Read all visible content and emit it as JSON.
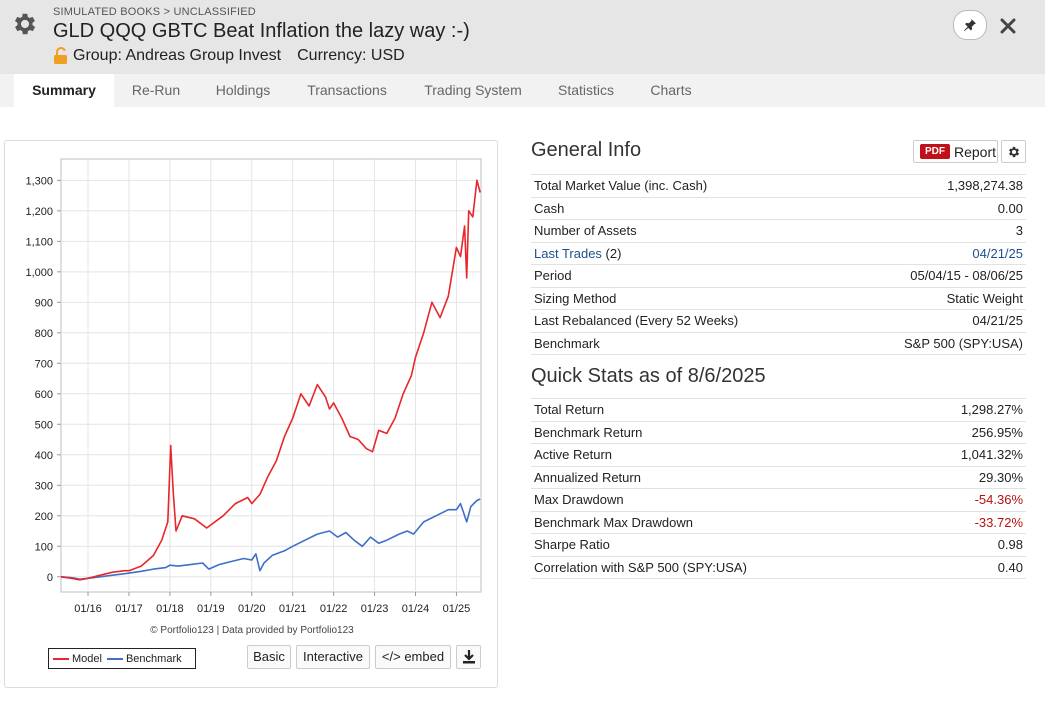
{
  "header": {
    "breadcrumb": "SIMULATED BOOKS > UNCLASSIFIED",
    "title": "GLD QQQ GBTC Beat Inflation the lazy way :-)",
    "group": "Group: Andreas Group Invest",
    "currency": "Currency: USD"
  },
  "tabs": [
    {
      "label": "Summary",
      "active": true
    },
    {
      "label": "Re-Run"
    },
    {
      "label": "Holdings"
    },
    {
      "label": "Transactions"
    },
    {
      "label": "Trading System"
    },
    {
      "label": "Statistics"
    },
    {
      "label": "Charts"
    }
  ],
  "chart": {
    "credit": "© Portfolio123 | Data provided by Portfolio123",
    "legend_model": "Model",
    "legend_benchmark": "Benchmark",
    "btn_basic": "Basic",
    "btn_interactive": "Interactive",
    "btn_embed": "</> embed"
  },
  "chart_data": {
    "type": "line",
    "x_tick_labels": [
      "01/16",
      "01/17",
      "01/18",
      "01/19",
      "01/20",
      "01/21",
      "01/22",
      "01/23",
      "01/24",
      "01/25"
    ],
    "y_tick_labels": [
      "0",
      "100",
      "200",
      "300",
      "400",
      "500",
      "600",
      "700",
      "800",
      "900",
      "1,000",
      "1,100",
      "1,200",
      "1,300"
    ],
    "ylim": [
      -50,
      1370
    ],
    "xlim": [
      2015.34,
      2025.6
    ],
    "grid": true,
    "legend_placement": "bottom-left",
    "colors": {
      "model": "#e8262b",
      "benchmark": "#3e6fc9"
    },
    "series": [
      {
        "name": "Model",
        "x": [
          2015.34,
          2015.6,
          2015.8,
          2016.0,
          2016.3,
          2016.6,
          2016.9,
          2017.0,
          2017.3,
          2017.6,
          2017.8,
          2017.95,
          2018.02,
          2018.08,
          2018.15,
          2018.3,
          2018.6,
          2018.9,
          2019.3,
          2019.6,
          2019.9,
          2020.0,
          2020.2,
          2020.4,
          2020.6,
          2020.8,
          2021.0,
          2021.2,
          2021.4,
          2021.6,
          2021.8,
          2021.9,
          2022.0,
          2022.2,
          2022.4,
          2022.6,
          2022.8,
          2022.95,
          2023.1,
          2023.3,
          2023.5,
          2023.7,
          2023.9,
          2024.0,
          2024.2,
          2024.4,
          2024.6,
          2024.8,
          2025.0,
          2025.1,
          2025.2,
          2025.25,
          2025.3,
          2025.4,
          2025.5,
          2025.58
        ],
        "values": [
          0,
          -5,
          -10,
          -5,
          5,
          15,
          20,
          20,
          35,
          70,
          120,
          180,
          430,
          280,
          150,
          200,
          190,
          160,
          200,
          240,
          260,
          240,
          270,
          330,
          380,
          460,
          520,
          600,
          560,
          630,
          590,
          550,
          570,
          520,
          460,
          450,
          420,
          410,
          480,
          470,
          520,
          600,
          660,
          720,
          800,
          900,
          850,
          920,
          1080,
          1050,
          1150,
          980,
          1200,
          1180,
          1300,
          1260
        ]
      },
      {
        "name": "Benchmark",
        "x": [
          2015.34,
          2015.6,
          2015.8,
          2016.0,
          2016.3,
          2016.6,
          2016.9,
          2017.0,
          2017.3,
          2017.6,
          2017.9,
          2018.0,
          2018.2,
          2018.5,
          2018.8,
          2018.95,
          2019.2,
          2019.5,
          2019.8,
          2020.0,
          2020.1,
          2020.2,
          2020.3,
          2020.5,
          2020.8,
          2021.0,
          2021.3,
          2021.6,
          2021.9,
          2022.1,
          2022.3,
          2022.5,
          2022.7,
          2022.9,
          2023.1,
          2023.3,
          2023.6,
          2023.8,
          2023.95,
          2024.2,
          2024.5,
          2024.8,
          2025.0,
          2025.1,
          2025.25,
          2025.35,
          2025.5,
          2025.58
        ],
        "values": [
          0,
          -3,
          -8,
          -5,
          0,
          5,
          10,
          12,
          18,
          25,
          30,
          38,
          35,
          40,
          45,
          25,
          40,
          50,
          60,
          55,
          75,
          20,
          45,
          70,
          85,
          100,
          120,
          140,
          150,
          130,
          145,
          120,
          100,
          130,
          110,
          120,
          140,
          150,
          140,
          180,
          200,
          220,
          220,
          240,
          180,
          230,
          250,
          255
        ]
      }
    ]
  },
  "general_info": {
    "title": "General Info",
    "pdf_badge": "PDF",
    "report_label": "Report",
    "rows": [
      {
        "label": "Total Market Value (inc. Cash)",
        "value": "1,398,274.38"
      },
      {
        "label": "Cash",
        "value": "0.00"
      },
      {
        "label": "Number of Assets",
        "value": "3"
      },
      {
        "label": "Last Trades",
        "label_suffix": " (2)",
        "value": "04/21/25",
        "link": true
      },
      {
        "label": "Period",
        "value": "05/04/15 - 08/06/25"
      },
      {
        "label": "Sizing Method",
        "value": "Static Weight"
      },
      {
        "label": "Last Rebalanced (Every 52 Weeks)",
        "value": "04/21/25"
      },
      {
        "label": "Benchmark",
        "value": "S&P 500 (SPY:USA)"
      }
    ]
  },
  "quick_stats": {
    "title": "Quick Stats as of 8/6/2025",
    "rows": [
      {
        "label": "Total Return",
        "value": "1,298.27%"
      },
      {
        "label": "Benchmark Return",
        "value": "256.95%"
      },
      {
        "label": "Active Return",
        "value": "1,041.32%"
      },
      {
        "label": "Annualized Return",
        "value": "29.30%"
      },
      {
        "label": "Max Drawdown",
        "value": "-54.36%",
        "negative": true
      },
      {
        "label": "Benchmark Max Drawdown",
        "value": "-33.72%",
        "negative": true
      },
      {
        "label": "Sharpe Ratio",
        "value": "0.98"
      },
      {
        "label": "Correlation with S&P 500 (SPY:USA)",
        "value": "0.40"
      }
    ]
  }
}
